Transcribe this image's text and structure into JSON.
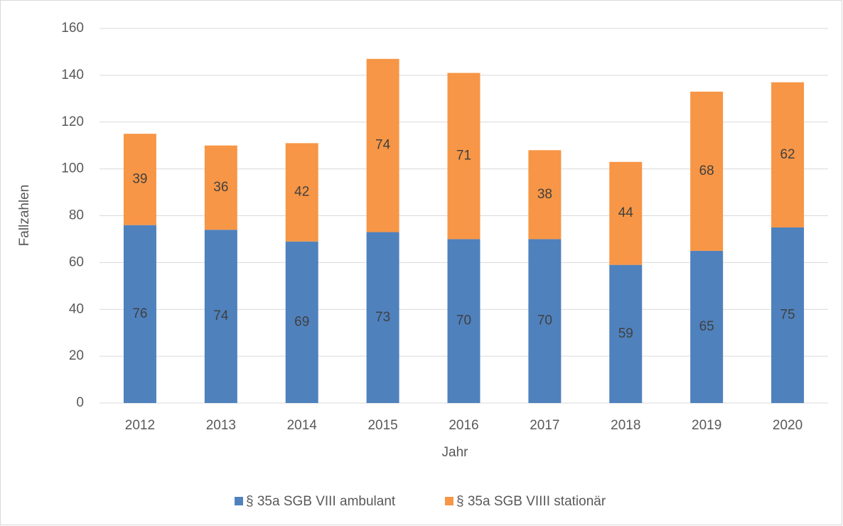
{
  "chart_data": {
    "type": "stacked_bar",
    "categories": [
      "2012",
      "2013",
      "2014",
      "2015",
      "2016",
      "2017",
      "2018",
      "2019",
      "2020"
    ],
    "series": [
      {
        "name": "§ 35a SGB VIII ambulant",
        "color": "#4f81bd",
        "values": [
          76,
          74,
          69,
          73,
          70,
          70,
          59,
          65,
          75
        ]
      },
      {
        "name": "§ 35a SGB VIIII stationär",
        "color": "#f79646",
        "values": [
          39,
          36,
          42,
          74,
          71,
          38,
          44,
          68,
          62
        ]
      }
    ],
    "x_label": "Jahr",
    "y_label": "Fallzahlen",
    "ylim": [
      0,
      160
    ],
    "yticks": [
      0,
      20,
      40,
      60,
      80,
      100,
      120,
      140,
      160
    ],
    "grid": true,
    "legend": "bottom"
  }
}
